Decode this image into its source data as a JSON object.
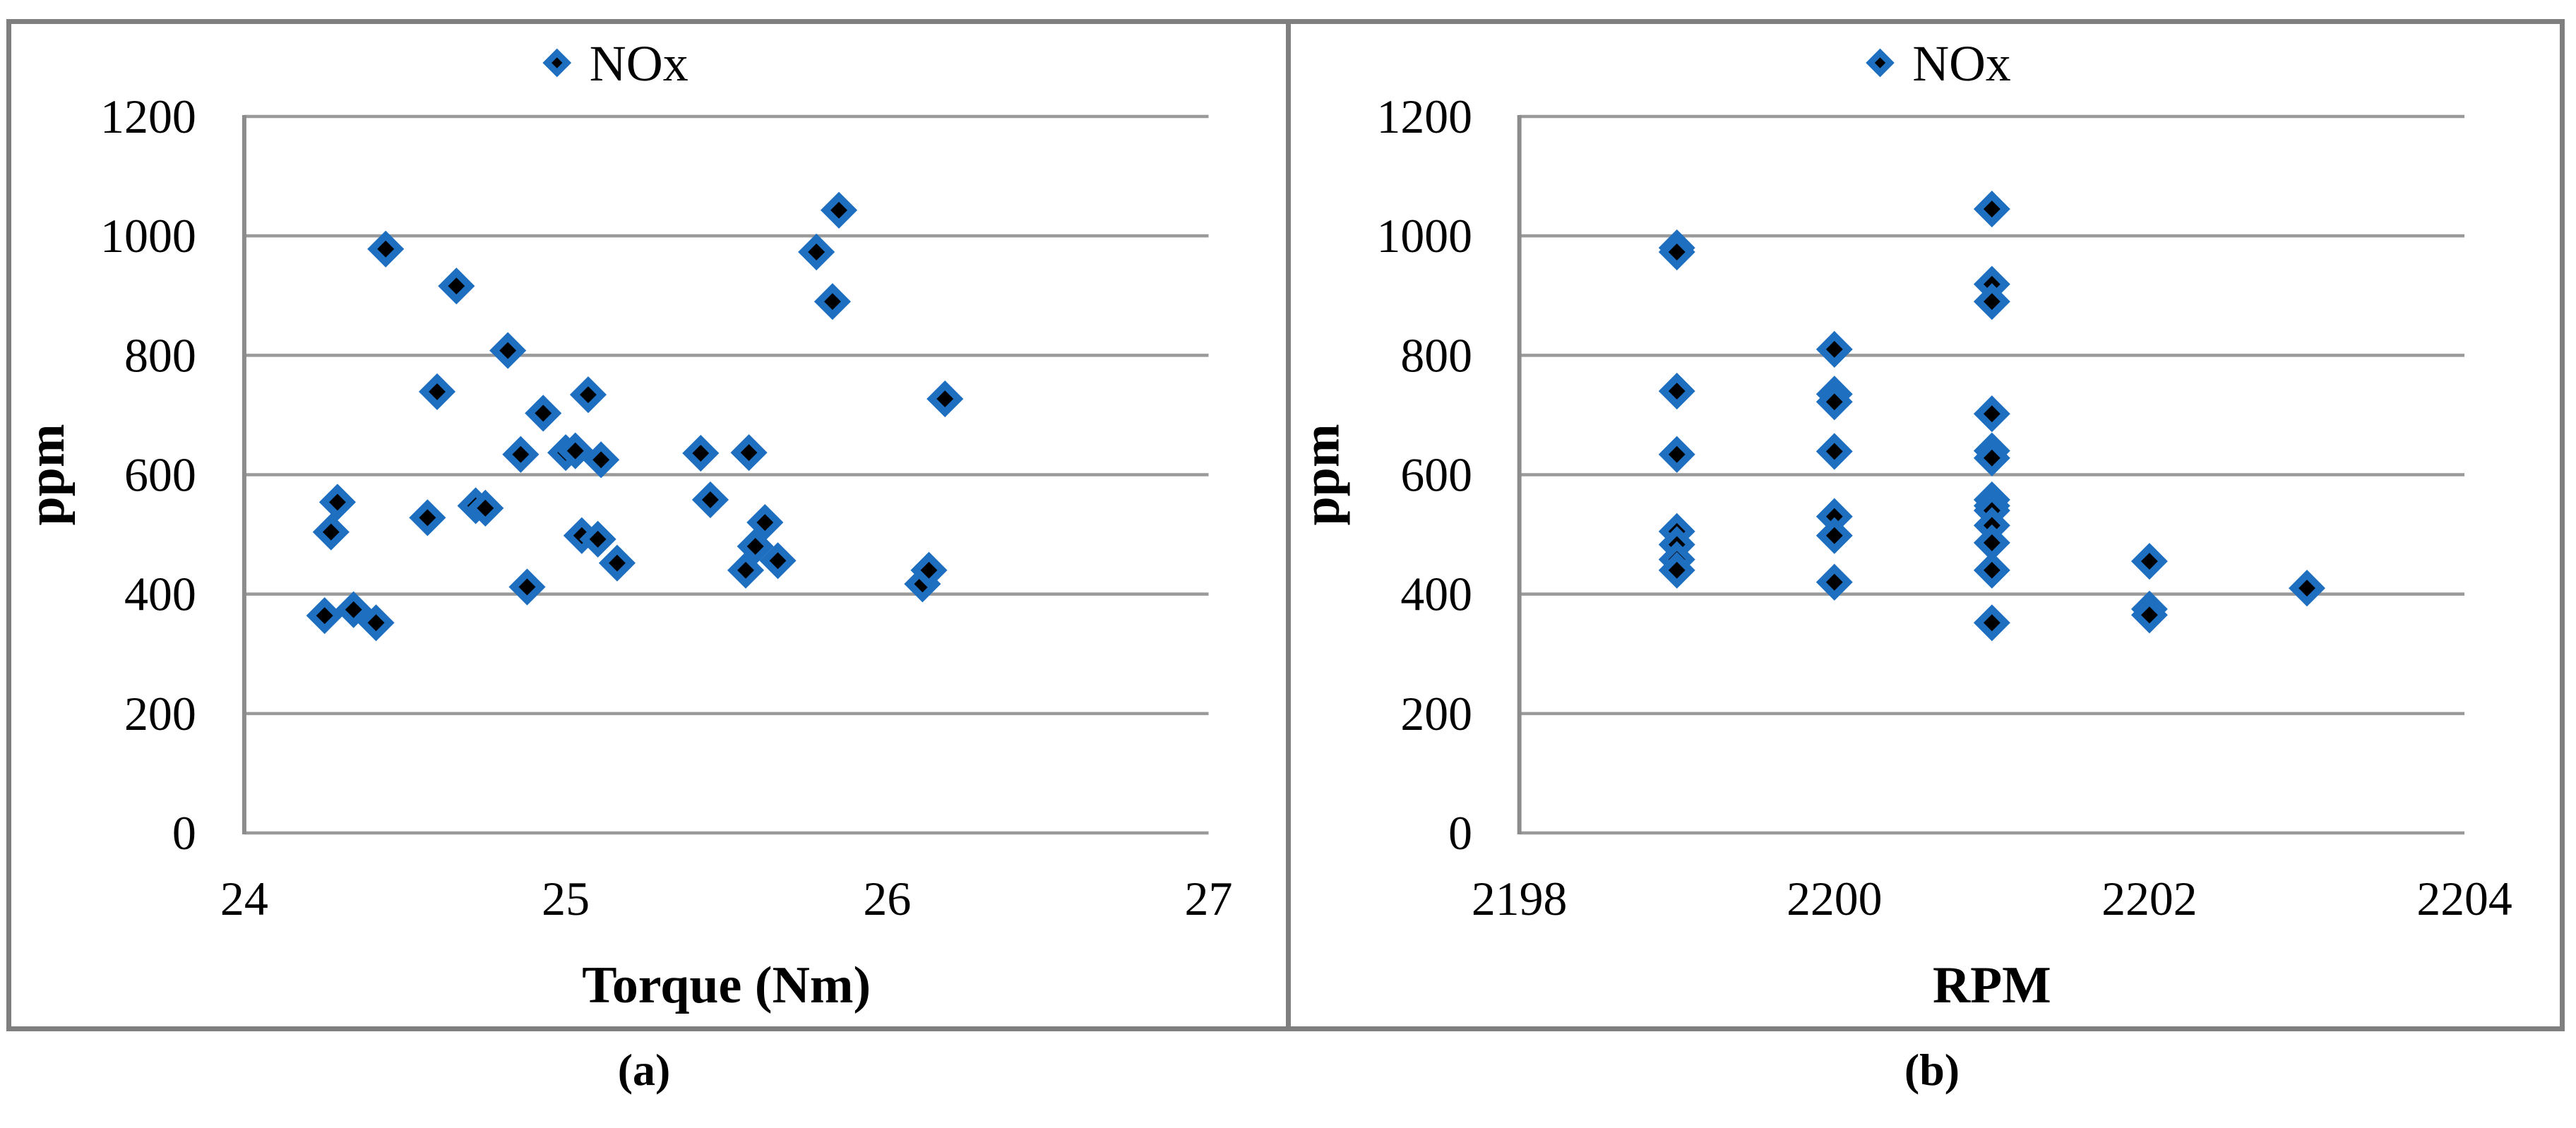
{
  "figure": {
    "captions": {
      "a": "(a)",
      "b": "(b)"
    },
    "colors": {
      "marker_fill": "#000000",
      "marker_stroke": "#1e6fc0",
      "gridline": "#9a9a9a",
      "axis": "#8c8c8c",
      "border": "#7f7f7f",
      "text": "#000000"
    }
  },
  "chart_data": [
    {
      "id": "a",
      "type": "scatter",
      "legend": {
        "label": "NOx",
        "position": "top-center",
        "marker": "diamond"
      },
      "xlabel": "Torque (Nm)",
      "ylabel": "ppm",
      "xlim": [
        24,
        27
      ],
      "ylim": [
        0,
        1200
      ],
      "x_ticks": [
        "24",
        "25",
        "26",
        "27"
      ],
      "y_ticks": [
        "0",
        "200",
        "400",
        "600",
        "800",
        "1000",
        "1200"
      ],
      "grid": "horizontal",
      "series": [
        {
          "name": "NOx",
          "marker": "diamond",
          "points": [
            [
              24.25,
              364
            ],
            [
              24.27,
              504
            ],
            [
              24.29,
              554
            ],
            [
              24.34,
              374
            ],
            [
              24.41,
              352
            ],
            [
              24.44,
              978
            ],
            [
              24.57,
              528
            ],
            [
              24.6,
              739
            ],
            [
              24.66,
              916
            ],
            [
              24.72,
              548
            ],
            [
              24.75,
              544
            ],
            [
              24.82,
              808
            ],
            [
              24.86,
              634
            ],
            [
              24.88,
              412
            ],
            [
              24.93,
              703
            ],
            [
              25.0,
              637
            ],
            [
              25.03,
              640
            ],
            [
              25.05,
              498
            ],
            [
              25.07,
              734
            ],
            [
              25.1,
              492
            ],
            [
              25.11,
              625
            ],
            [
              25.16,
              452
            ],
            [
              25.42,
              636
            ],
            [
              25.45,
              558
            ],
            [
              25.56,
              440
            ],
            [
              25.57,
              637
            ],
            [
              25.59,
              480
            ],
            [
              25.62,
              520
            ],
            [
              25.66,
              456
            ],
            [
              25.78,
              973
            ],
            [
              25.83,
              890
            ],
            [
              25.85,
              1043
            ],
            [
              26.11,
              417
            ],
            [
              26.13,
              440
            ],
            [
              26.18,
              727
            ]
          ]
        }
      ]
    },
    {
      "id": "b",
      "type": "scatter",
      "legend": {
        "label": "NOx",
        "position": "top-center",
        "marker": "diamond"
      },
      "xlabel": "RPM",
      "ylabel": "ppm",
      "xlim": [
        2198,
        2204
      ],
      "ylim": [
        0,
        1200
      ],
      "x_ticks": [
        "2198",
        "2200",
        "2202",
        "2204"
      ],
      "y_ticks": [
        "0",
        "200",
        "400",
        "600",
        "800",
        "1000",
        "1200"
      ],
      "grid": "horizontal",
      "series": [
        {
          "name": "NOx",
          "marker": "diamond",
          "points": [
            [
              2199,
              980
            ],
            [
              2199,
              973
            ],
            [
              2199,
              740
            ],
            [
              2199,
              634
            ],
            [
              2199,
              505
            ],
            [
              2199,
              483
            ],
            [
              2199,
              458
            ],
            [
              2199,
              440
            ],
            [
              2200,
              810
            ],
            [
              2200,
              735
            ],
            [
              2200,
              722
            ],
            [
              2200,
              639
            ],
            [
              2200,
              530
            ],
            [
              2200,
              498
            ],
            [
              2200,
              420
            ],
            [
              2201,
              1045
            ],
            [
              2201,
              919
            ],
            [
              2201,
              890
            ],
            [
              2201,
              702
            ],
            [
              2201,
              640
            ],
            [
              2201,
              628
            ],
            [
              2201,
              558
            ],
            [
              2201,
              548
            ],
            [
              2201,
              540
            ],
            [
              2201,
              515
            ],
            [
              2201,
              486
            ],
            [
              2201,
              440
            ],
            [
              2201,
              352
            ],
            [
              2202,
              455
            ],
            [
              2202,
              375
            ],
            [
              2202,
              365
            ],
            [
              2203,
              410
            ]
          ]
        }
      ]
    }
  ]
}
